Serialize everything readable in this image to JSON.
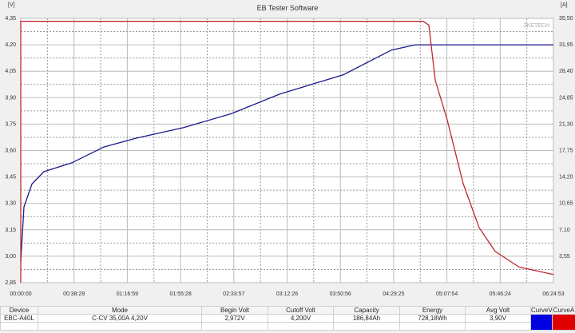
{
  "title": "EB Tester Software",
  "watermark": "ZKETECH",
  "chart_data": {
    "type": "line",
    "title": "EB Tester Software",
    "ylabel_left": "[V]",
    "ylabel_right": "[A]",
    "ylim_left": [
      2.85,
      4.35
    ],
    "ylim_right": [
      0,
      35.5
    ],
    "xlim_minutes": [
      0,
      384.9
    ],
    "x_tick_labels": [
      "00:00:00",
      "00:38:29",
      "01:16:59",
      "01:55:28",
      "02:33:57",
      "03:12:26",
      "03:50:56",
      "04:29:25",
      "05:07:54",
      "05:46:24",
      "06:24:53"
    ],
    "y_left_ticks": [
      "4,35",
      "4,20",
      "4,05",
      "3,90",
      "3,75",
      "3,60",
      "3,45",
      "3,30",
      "3,15",
      "3,00",
      "2,85"
    ],
    "y_right_ticks": [
      "35,50",
      "31,95",
      "28,40",
      "24,85",
      "21,30",
      "17,75",
      "14,20",
      "10,65",
      "7,10",
      "3,55",
      ""
    ],
    "grid": true,
    "series": [
      {
        "axis": "left",
        "color": "#1a1a8c",
        "x": [
          0,
          2.3,
          8.1,
          16.7,
          36.9,
          60.0,
          83.1,
          117.7,
          152.3,
          187.0,
          233.1,
          267.8,
          285.1,
          292.0,
          384.9
        ],
        "y": [
          2.97,
          3.28,
          3.41,
          3.48,
          3.53,
          3.62,
          3.67,
          3.73,
          3.81,
          3.92,
          4.03,
          4.17,
          4.2,
          4.2,
          4.2
        ]
      },
      {
        "axis": "right",
        "color": "#c0282d",
        "x": [
          0,
          0.01,
          290.8,
          294.9,
          299.5,
          308.1,
          319.7,
          331.2,
          342.8,
          360.1,
          384.9
        ],
        "y": [
          0,
          35.1,
          35.1,
          34.6,
          27.2,
          21.9,
          13.3,
          7.4,
          4.2,
          2.1,
          1.1
        ]
      }
    ]
  },
  "table": {
    "headers": [
      "Device",
      "Mode",
      "Begin Volt",
      "Cutoff Volt",
      "Capacity",
      "Energy",
      "Avg Volt",
      "CurveV",
      "CurveA"
    ],
    "row": [
      "EBC-A40L",
      "C-CV  35,00A  4,20V",
      "2,972V",
      "4,200V",
      "186,84Ah",
      "728,18Wh",
      "3,90V",
      "",
      ""
    ],
    "curve_colors": [
      "#0000e0",
      "#e00000"
    ]
  }
}
